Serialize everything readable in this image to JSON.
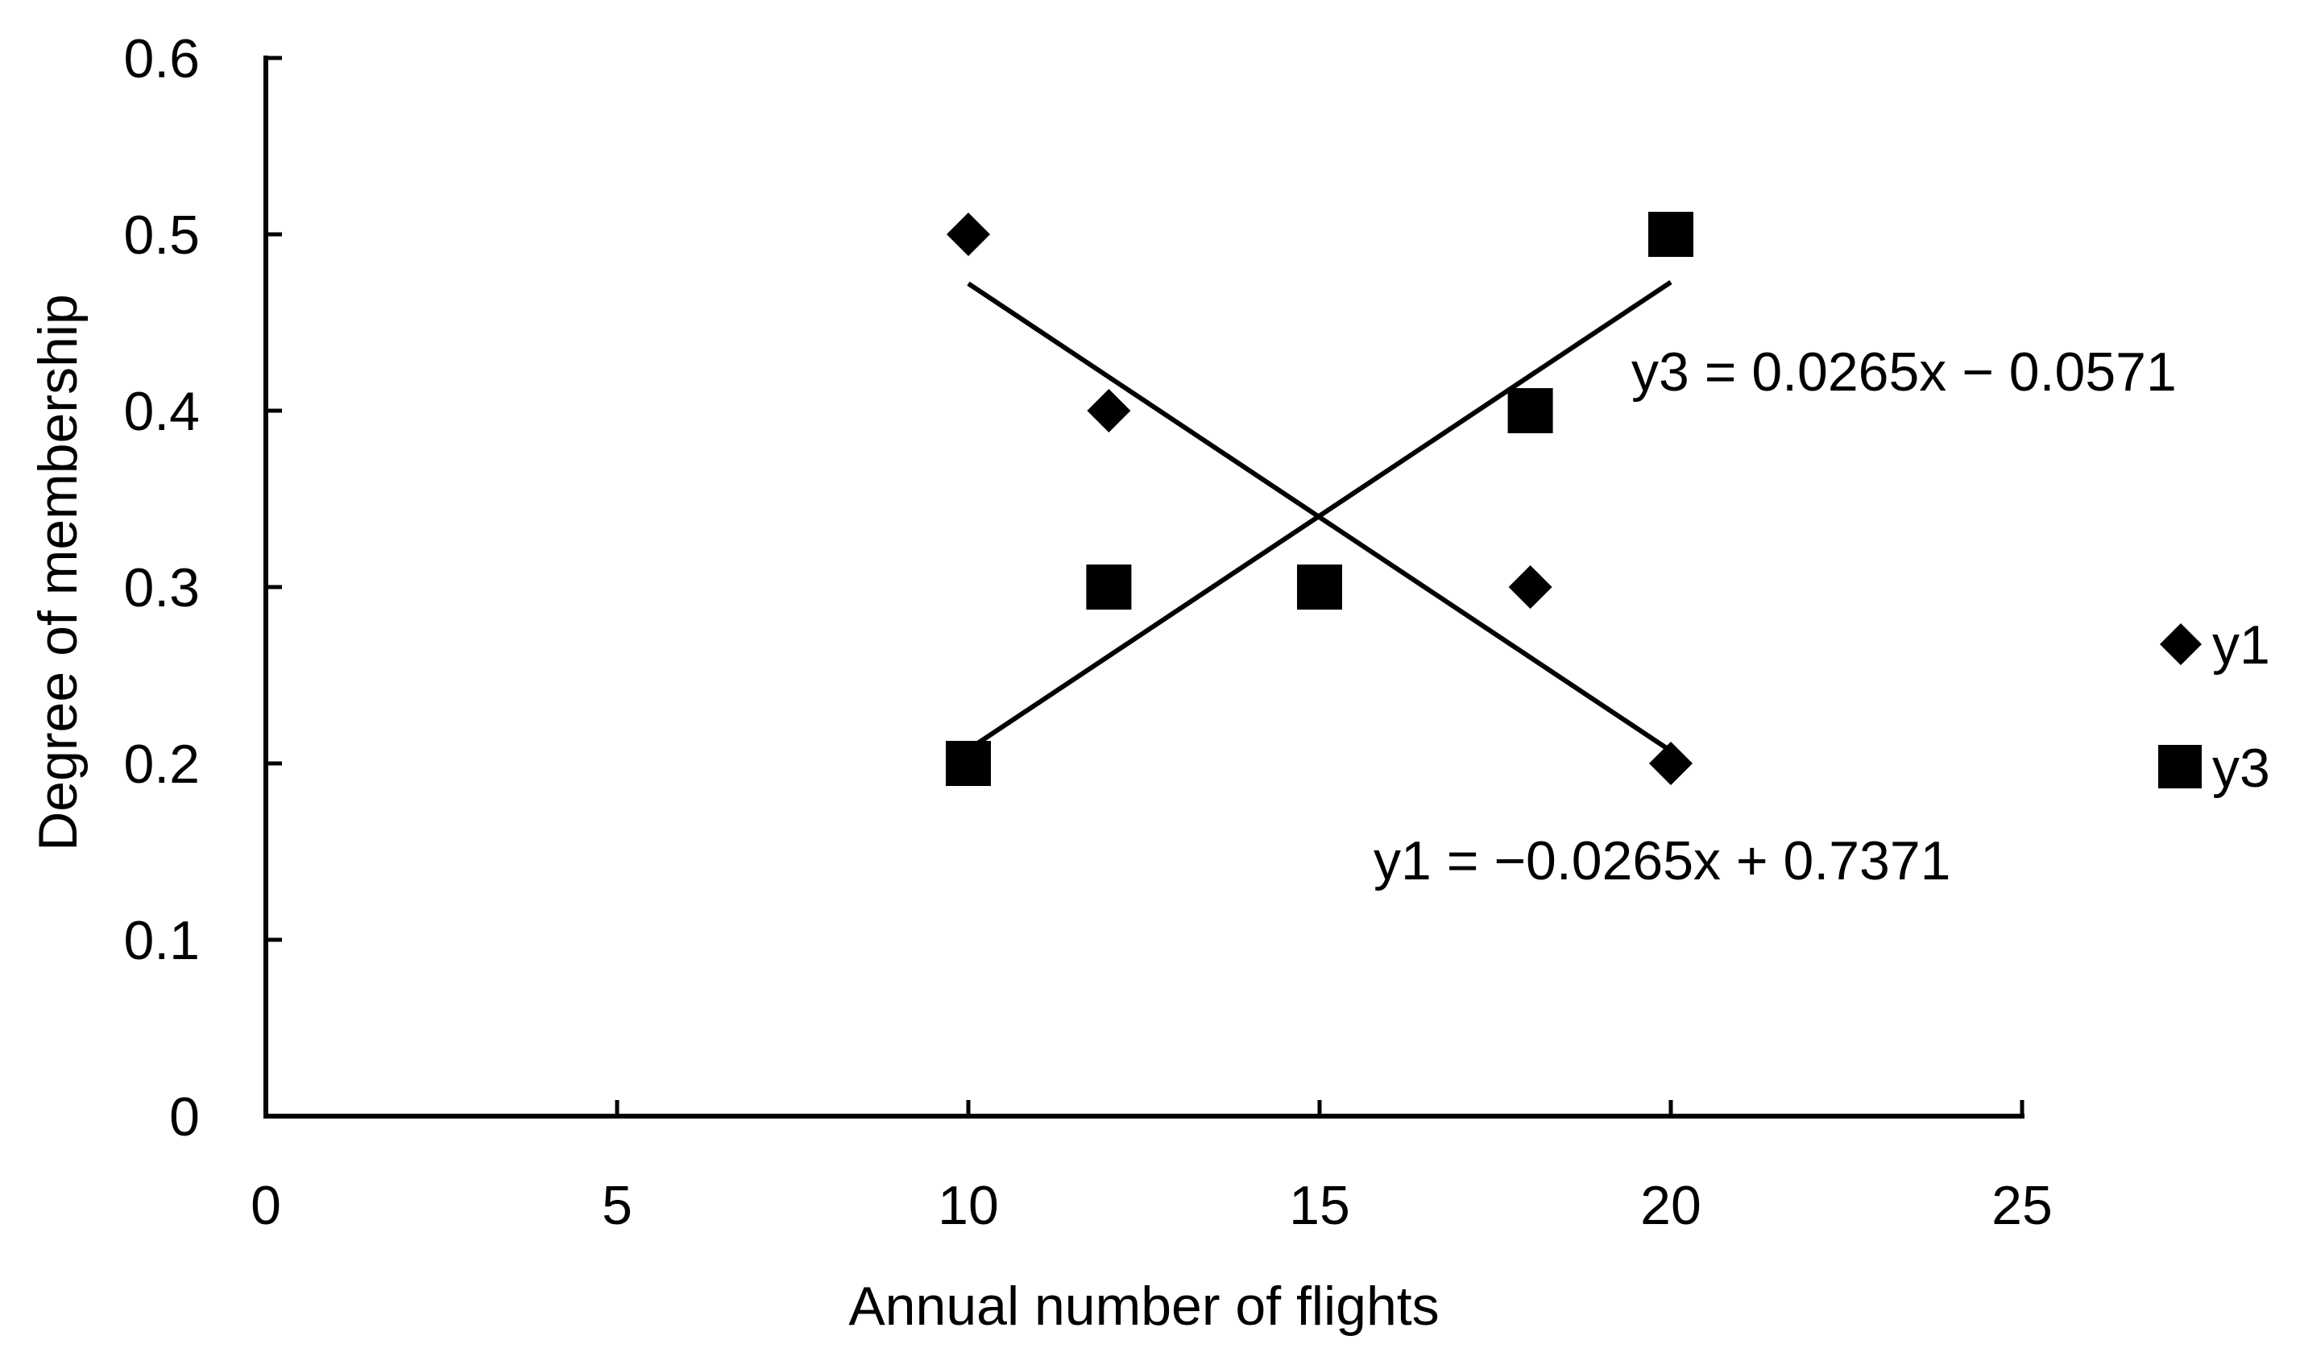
{
  "chart_data": {
    "type": "scatter",
    "title": "",
    "xlabel": "Annual number of flights",
    "ylabel": "Degree of membership",
    "xlim": [
      0,
      25
    ],
    "ylim": [
      0,
      0.6
    ],
    "x_ticks": [
      0,
      5,
      10,
      15,
      20,
      25
    ],
    "x_tick_labels": [
      "0",
      "5",
      "10",
      "15",
      "20",
      "25"
    ],
    "y_ticks": [
      0,
      0.1,
      0.2,
      0.3,
      0.4,
      0.5,
      0.6
    ],
    "y_tick_labels": [
      "0",
      "0.1",
      "0.2",
      "0.3",
      "0.4",
      "0.5",
      "0.6"
    ],
    "grid": false,
    "legend_position": "right",
    "colors": {
      "marker": "#000000",
      "line": "#000000",
      "background": "#ffffff"
    },
    "series": [
      {
        "name": "y1",
        "marker": "diamond",
        "x": [
          10,
          12,
          15,
          18,
          20
        ],
        "y": [
          0.5,
          0.4,
          0.3,
          0.3,
          0.2
        ],
        "trendline": {
          "slope": -0.0265,
          "intercept": 0.7371,
          "x_range": [
            10,
            20
          ],
          "equation": "y1 = −0.0265x + 0.7371"
        }
      },
      {
        "name": "y3",
        "marker": "square",
        "x": [
          10,
          12,
          15,
          18,
          20
        ],
        "y": [
          0.2,
          0.3,
          0.3,
          0.4,
          0.5
        ],
        "trendline": {
          "slope": 0.0265,
          "intercept": -0.0571,
          "x_range": [
            10,
            20
          ],
          "equation": "y3 = 0.0265x − 0.0571"
        }
      }
    ]
  }
}
